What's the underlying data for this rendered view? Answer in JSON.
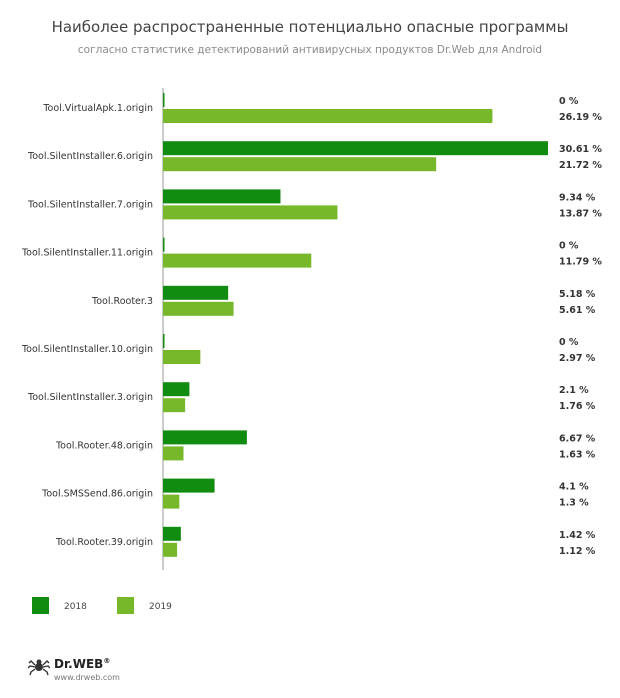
{
  "title": "Наиболее распространенные потенциально опасные программы",
  "subtitle": "согласно статистике детектирований антивирусных продуктов Dr.Web для Android",
  "colors": {
    "s2018": "#118c11",
    "s2019": "#76b82a",
    "axis": "#999999"
  },
  "logo": {
    "name": "Dr.WEB",
    "mark": "®",
    "url": "www.drweb.com",
    "icon": "spider-icon"
  },
  "chart_data": {
    "type": "bar",
    "orientation": "horizontal",
    "title": "Наиболее распространенные потенциально опасные программы",
    "subtitle": "согласно статистике детектирований антивирусных продуктов Dr.Web для Android",
    "categories": [
      "Tool.VirtualApk.1.origin",
      "Tool.SilentInstaller.6.origin",
      "Tool.SilentInstaller.7.origin",
      "Tool.SilentInstaller.11.origin",
      "Tool.Rooter.3",
      "Tool.SilentInstaller.10.origin",
      "Tool.SilentInstaller.3.origin",
      "Tool.Rooter.48.origin",
      "Tool.SMSSend.86.origin",
      "Tool.Rooter.39.origin"
    ],
    "series": [
      {
        "name": "2018",
        "values": [
          0,
          30.61,
          9.34,
          0,
          5.18,
          0,
          2.1,
          6.67,
          4.1,
          1.42
        ],
        "labels": [
          "0 %",
          "30.61 %",
          "9.34 %",
          "0 %",
          "5.18 %",
          "0 %",
          "2.1 %",
          "6.67 %",
          "4.1 %",
          "1.42 %"
        ]
      },
      {
        "name": "2019",
        "values": [
          26.19,
          21.72,
          13.87,
          11.79,
          5.61,
          2.97,
          1.76,
          1.63,
          1.3,
          1.12
        ],
        "labels": [
          "26.19 %",
          "21.72 %",
          "13.87 %",
          "11.79 %",
          "5.61 %",
          "2.97 %",
          "1.76 %",
          "1.63 %",
          "1.3 %",
          "1.12 %"
        ]
      }
    ],
    "xlim": [
      0,
      30.61
    ],
    "grid": false,
    "legend": "bottom-left"
  }
}
